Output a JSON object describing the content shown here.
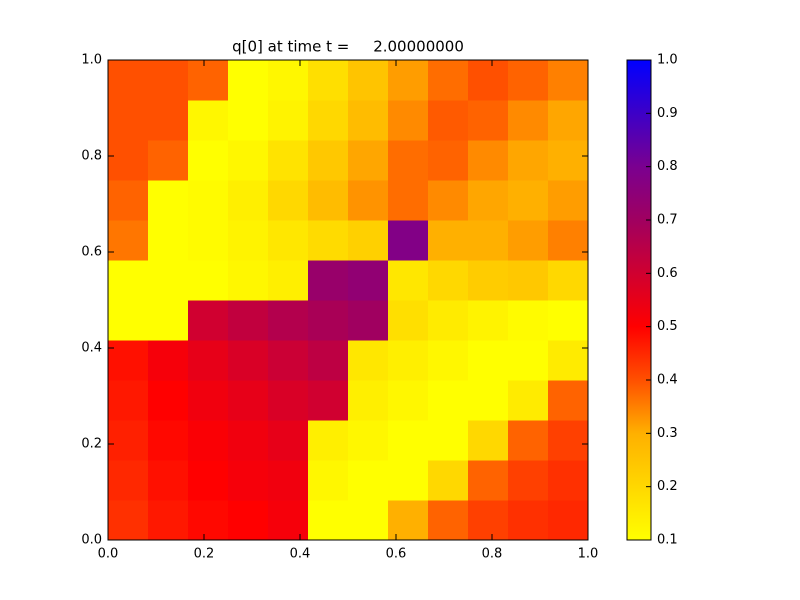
{
  "chart_data": {
    "type": "heatmap",
    "title": "q[0] at time t =     2.00000000",
    "xlim": [
      0,
      1
    ],
    "ylim": [
      0,
      1
    ],
    "xticks": [
      {
        "value": 0,
        "label": "0.0"
      },
      0.2,
      0.4,
      0.6,
      0.8,
      {
        "value": 1,
        "label": "1.0"
      }
    ],
    "yticks": [
      {
        "value": 0,
        "label": "0.0"
      },
      0.2,
      0.4,
      0.6,
      0.8,
      {
        "value": 1,
        "label": "1.0"
      }
    ],
    "z": [
      [
        0.44,
        0.47,
        0.49,
        0.5,
        0.52,
        0.1,
        0.1,
        0.3,
        0.38,
        0.42,
        0.44,
        0.45
      ],
      [
        0.45,
        0.48,
        0.5,
        0.52,
        0.53,
        0.12,
        0.1,
        0.1,
        0.2,
        0.38,
        0.42,
        0.44
      ],
      [
        0.46,
        0.49,
        0.51,
        0.53,
        0.55,
        0.14,
        0.12,
        0.1,
        0.1,
        0.2,
        0.38,
        0.42
      ],
      [
        0.47,
        0.5,
        0.53,
        0.55,
        0.58,
        0.6,
        0.14,
        0.12,
        0.1,
        0.1,
        0.15,
        0.38
      ],
      [
        0.48,
        0.52,
        0.55,
        0.58,
        0.61,
        0.64,
        0.16,
        0.14,
        0.12,
        0.1,
        0.1,
        0.15
      ],
      [
        0.1,
        0.1,
        0.6,
        0.63,
        0.66,
        0.68,
        0.7,
        0.18,
        0.15,
        0.13,
        0.11,
        0.1
      ],
      [
        0.1,
        0.1,
        0.1,
        0.12,
        0.14,
        0.72,
        0.74,
        0.16,
        0.2,
        0.23,
        0.24,
        0.2
      ],
      [
        0.36,
        0.1,
        0.11,
        0.13,
        0.16,
        0.19,
        0.22,
        0.78,
        0.3,
        0.3,
        0.32,
        0.35
      ],
      [
        0.38,
        0.1,
        0.11,
        0.14,
        0.2,
        0.27,
        0.33,
        0.37,
        0.34,
        0.31,
        0.3,
        0.32
      ],
      [
        0.4,
        0.38,
        0.1,
        0.12,
        0.17,
        0.24,
        0.31,
        0.37,
        0.38,
        0.34,
        0.31,
        0.3
      ],
      [
        0.4,
        0.4,
        0.12,
        0.1,
        0.13,
        0.2,
        0.27,
        0.34,
        0.39,
        0.38,
        0.34,
        0.31
      ],
      [
        0.4,
        0.4,
        0.38,
        0.1,
        0.12,
        0.18,
        0.25,
        0.32,
        0.37,
        0.4,
        0.38,
        0.35
      ]
    ],
    "colormap": [
      {
        "value": 0.1,
        "color": "#ffff00"
      },
      {
        "value": 0.3,
        "color": "#ffb000"
      },
      {
        "value": 0.4,
        "color": "#ff5000"
      },
      {
        "value": 0.5,
        "color": "#ff0000"
      },
      {
        "value": 0.7,
        "color": "#a00060"
      },
      {
        "value": 0.8,
        "color": "#7a0090"
      },
      {
        "value": 1.0,
        "color": "#0000ff"
      }
    ],
    "colorbar": {
      "lim": [
        0.1,
        1.0
      ],
      "ticks": [
        0.1,
        0.2,
        0.3,
        0.4,
        0.5,
        0.6,
        0.7,
        0.8,
        0.9,
        {
          "value": 1.0,
          "label": "1.0"
        }
      ]
    }
  }
}
